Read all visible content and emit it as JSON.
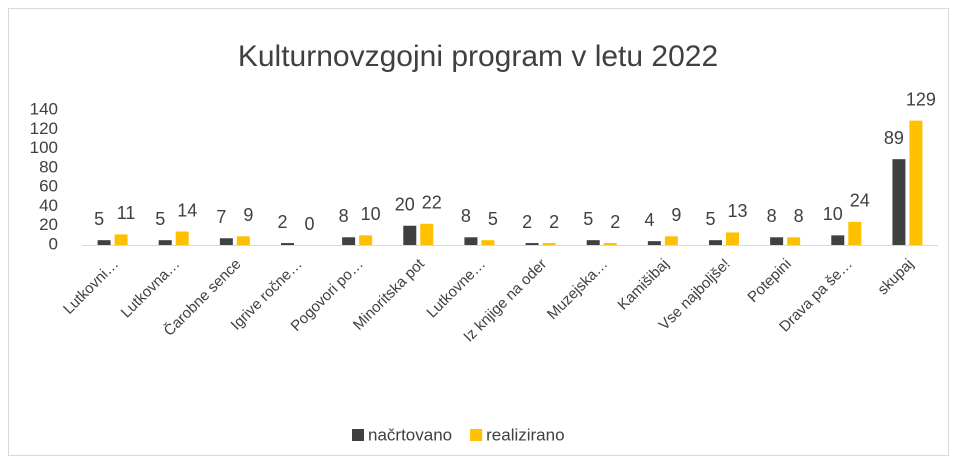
{
  "chart_data": {
    "type": "bar",
    "title": "Kulturnovzgojni program v letu 2022",
    "categories": [
      "Lutkovni…",
      "Lutkovna…",
      "Čarobne sence",
      "Igrive ročne…",
      "Pogovori po…",
      "Minoritska pot",
      "Lutkovne…",
      "Iz knjige na oder",
      "Muzejska…",
      "Kamišibaj",
      "Vse najboljše!",
      "Potepini",
      "Drava pa še…",
      "skupaj"
    ],
    "series": [
      {
        "name": "načrtovano",
        "color": "#404040",
        "values": [
          5,
          5,
          7,
          2,
          8,
          20,
          8,
          2,
          5,
          4,
          5,
          8,
          10,
          89
        ]
      },
      {
        "name": "realizirano",
        "color": "#ffc000",
        "values": [
          11,
          14,
          9,
          0,
          10,
          22,
          5,
          2,
          2,
          9,
          13,
          8,
          24,
          129
        ]
      }
    ],
    "ylim": [
      0,
      140
    ],
    "yticks": [
      0,
      20,
      40,
      60,
      80,
      100,
      120,
      140
    ],
    "grid": false,
    "legend": "bottom"
  }
}
